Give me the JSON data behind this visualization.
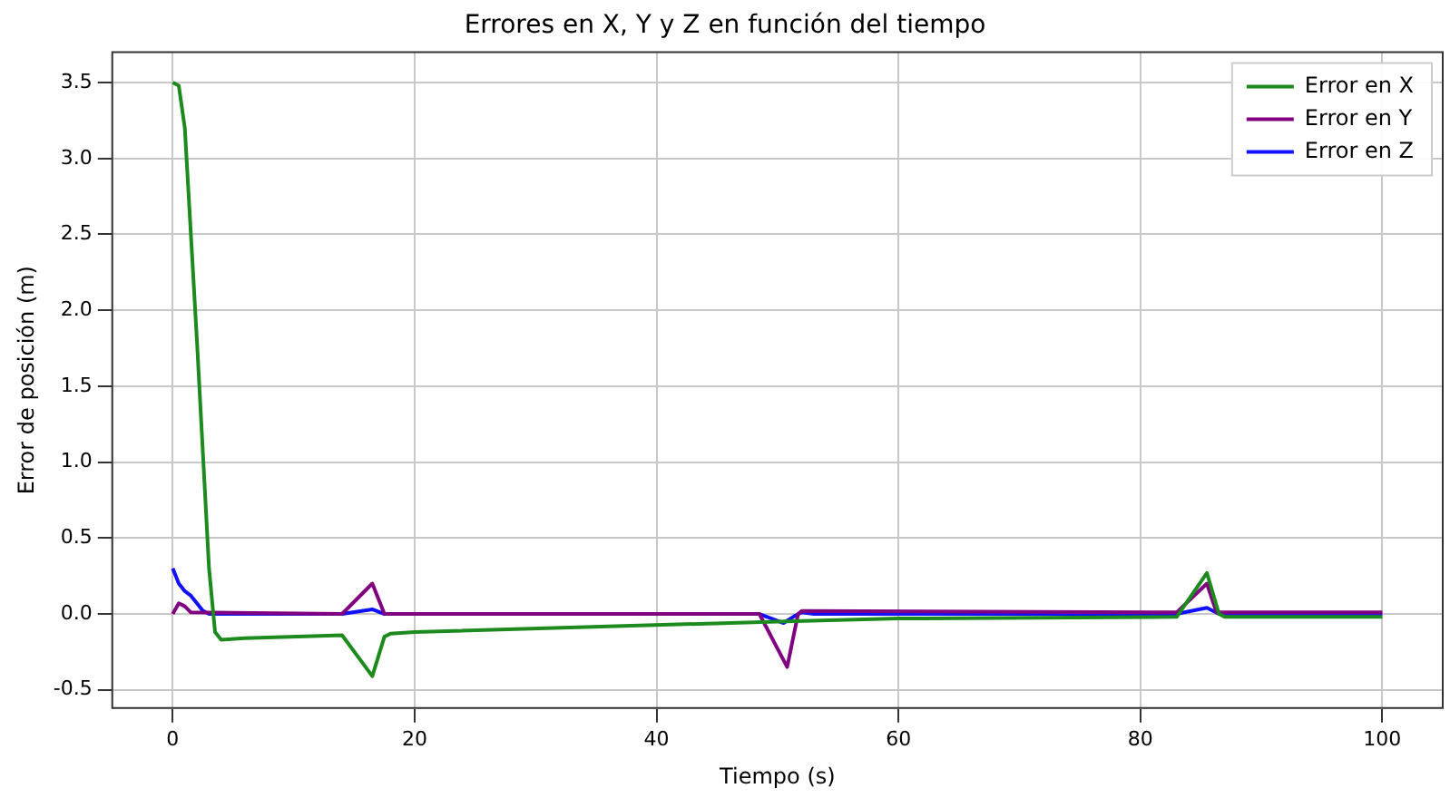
{
  "chart_data": {
    "type": "line",
    "title": "Errores en X, Y y Z en función del tiempo",
    "xlabel": "Tiempo (s)",
    "ylabel": "Error de posición (m)",
    "xlim": [
      -5,
      105
    ],
    "xticks": [
      0,
      20,
      40,
      60,
      80,
      100
    ],
    "ylim": [
      -0.62,
      3.7
    ],
    "yticks": [
      -0.5,
      {
        "value": 0,
        "label": "0.0"
      },
      0.5,
      {
        "value": 1,
        "label": "1.0"
      },
      1.5,
      {
        "value": 2,
        "label": "2.0"
      },
      2.5,
      {
        "value": 3,
        "label": "3.0"
      },
      3.5
    ],
    "grid": true,
    "legend": "top right",
    "marker": "none",
    "line_style": "solid",
    "series": [
      {
        "name": "Error en X",
        "color": "#1c8a1c",
        "x": [
          0,
          0.5,
          1,
          2,
          3,
          3.5,
          4,
          6,
          14,
          16.5,
          17.5,
          18,
          20,
          50,
          60,
          83,
          85.5,
          86.5,
          87,
          100
        ],
        "values": [
          3.5,
          3.48,
          3.2,
          1.8,
          0.3,
          -0.12,
          -0.17,
          -0.16,
          -0.14,
          -0.41,
          -0.15,
          -0.13,
          -0.12,
          -0.05,
          -0.03,
          -0.02,
          0.27,
          0.0,
          -0.02,
          -0.02
        ]
      },
      {
        "name": "Error en Y",
        "color": "#800080",
        "x": [
          0,
          0.5,
          1,
          1.5,
          14,
          16.5,
          17.5,
          48.5,
          50.8,
          51.7,
          52,
          83,
          85.5,
          86.3,
          100
        ],
        "values": [
          0,
          0.07,
          0.05,
          0.01,
          0,
          0.2,
          0,
          0,
          -0.35,
          0,
          0.02,
          0.01,
          0.2,
          0.01,
          0.01
        ]
      },
      {
        "name": "Error en Z",
        "color": "#1010ff",
        "x": [
          0,
          0.5,
          1,
          1.5,
          2,
          2.5,
          3,
          14,
          16.5,
          17.5,
          48.5,
          50.5,
          51.5,
          52,
          53,
          83,
          85.5,
          86.5,
          100
        ],
        "values": [
          0.3,
          0.2,
          0.15,
          0.12,
          0.07,
          0.02,
          0,
          0,
          0.03,
          0,
          0,
          -0.06,
          -0.01,
          0.01,
          0,
          0,
          0.04,
          0,
          0
        ]
      }
    ]
  }
}
